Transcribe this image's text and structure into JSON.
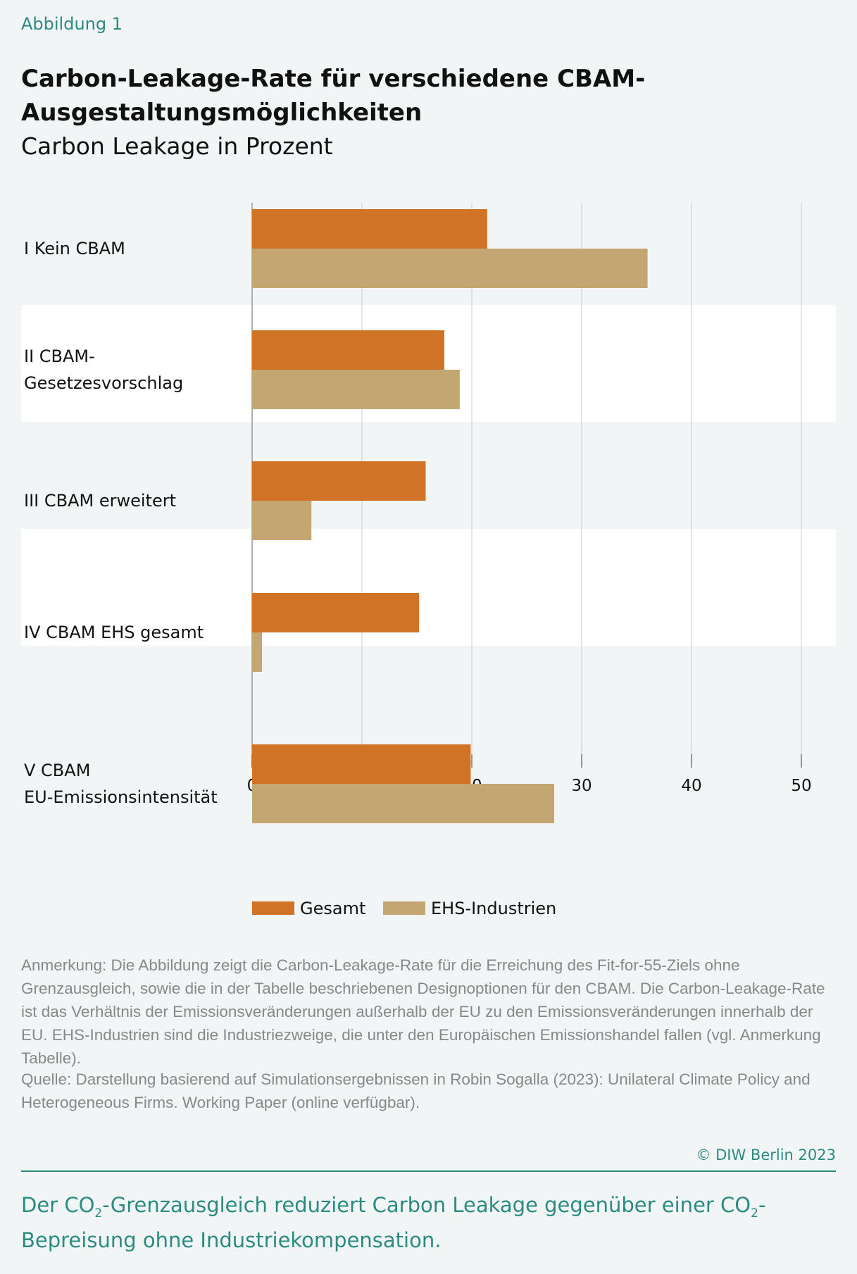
{
  "figure_label": "Abbildung 1",
  "chart_data": {
    "type": "bar",
    "orientation": "horizontal",
    "title": "Carbon-Leakage-Rate für verschiedene CBAM-Ausgestaltungsmöglichkeiten",
    "subtitle": "Carbon Leakage in Prozent",
    "categories": [
      "I Kein CBAM",
      "II CBAM-Gesetzesvorschlag",
      "III CBAM erweitert",
      "IV CBAM EHS gesamt",
      "V CBAM EU-Emissionsintensität"
    ],
    "category_lines": [
      [
        "I Kein CBAM"
      ],
      [
        "II CBAM-",
        "Gesetzesvorschlag"
      ],
      [
        "III CBAM erweitert"
      ],
      [
        "IV CBAM EHS gesamt"
      ],
      [
        "V CBAM",
        "EU-Emissionsintensität"
      ]
    ],
    "series": [
      {
        "name": "Gesamt",
        "color": "#d07327",
        "values": [
          21.4,
          17.5,
          15.8,
          15.2,
          19.9
        ]
      },
      {
        "name": "EHS-Industrien",
        "color": "#c4a673",
        "values": [
          36.0,
          18.9,
          5.4,
          0.9,
          27.5
        ]
      }
    ],
    "xlim": [
      0,
      50
    ],
    "xticks": [
      0,
      10,
      20,
      30,
      40,
      50
    ],
    "grid": true,
    "legend": "bottom-left",
    "band_colors": [
      "#f2f5f5",
      "#ffffff"
    ]
  },
  "note": "Anmerkung: Die Abbildung zeigt die Carbon-Leakage-Rate für die Erreichung des Fit-for-55-Ziels ohne Grenzausgleich, sowie die in der Tabelle beschriebenen Designoptionen für den CBAM. Die Carbon-Leakage-Rate ist das Verhältnis der Emissionsveränderungen außerhalb der EU zu den Emissionsveränderungen innerhalb der EU. EHS-Industrien sind die Industriezweige, die unter den Europäischen Emissionshandel fallen (vgl. Anmerkung Tabelle).",
  "source": "Quelle: Darstellung basierend auf Simulationsergebnissen in Robin Sogalla (2023): Unilateral Climate Policy and Heterogeneous Firms. Working Paper (online verfügbar).",
  "copyright": "© DIW Berlin 2023",
  "takeaway": {
    "p1": "Der CO",
    "sub1": "2",
    "p2": "-Grenzausgleich reduziert Carbon Leakage gegenüber einer CO",
    "sub2": "2",
    "p3": "-Bepreisung ohne Industriekompensation."
  }
}
